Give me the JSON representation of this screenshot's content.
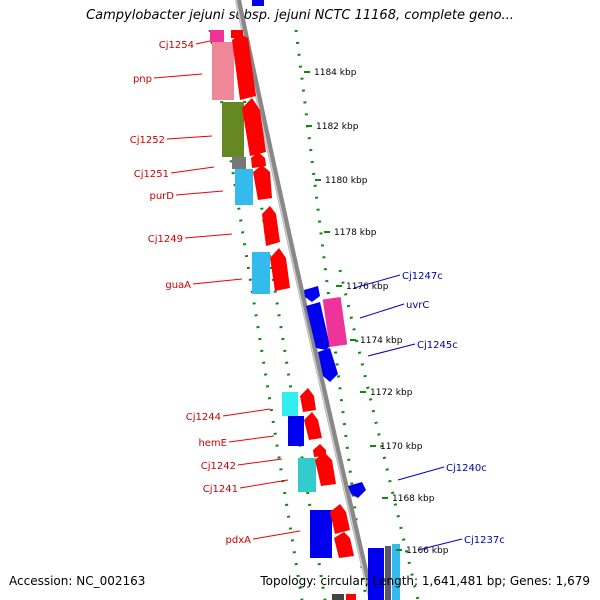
{
  "title": "Campylobacter jejuni subsp. jejuni NCTC 11168, complete geno...",
  "accession": "Accession: NC_002163",
  "summary": "Topology: circular; Length: 1,641,481 bp; Genes: 1,679",
  "scale_ticks": [
    "1184 kbp",
    "1182 kbp",
    "1180 kbp",
    "1178 kbp",
    "1176 kbp",
    "1174 kbp",
    "1172 kbp",
    "1170 kbp",
    "1168 kbp",
    "1166 kbp"
  ],
  "genes_left": [
    "Cj1254",
    "pnp",
    "Cj1252",
    "Cj1251",
    "purD",
    "Cj1249",
    "guaA",
    "Cj1244",
    "hemE",
    "Cj1242",
    "Cj1241",
    "pdxA"
  ],
  "genes_right": [
    "Cj1247c",
    "uvrC",
    "Cj1245c",
    "Cj1240c",
    "Cj1237c"
  ],
  "colors": {
    "forward_label": "#cc0000",
    "reverse_label": "#0000aa",
    "forward_gene": "#ff0000",
    "reverse_gene": "#0000ee",
    "cyan_gene": "#33bbee",
    "pink_gene": "#ee3399",
    "olive_gene": "#668822",
    "guide_dots": "#118811",
    "backbone": "#888888"
  }
}
